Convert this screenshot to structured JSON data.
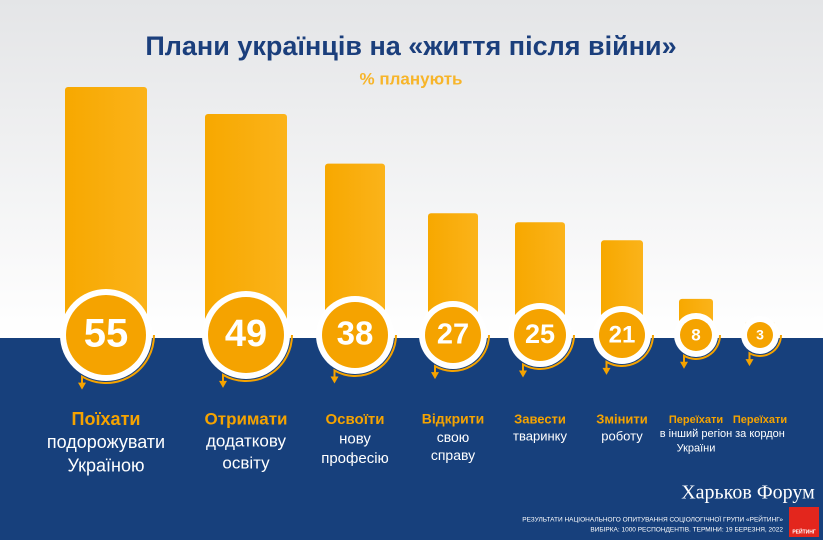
{
  "chart_data": {
    "type": "bar",
    "title": "Плани українців на «життя після війни»",
    "subtitle": "% планують",
    "categories": [
      [
        "Поїхати",
        "подорожувати",
        "Україною"
      ],
      [
        "Отримати",
        "додаткову",
        "освіту"
      ],
      [
        "Освоїти",
        "нову",
        "професію"
      ],
      [
        "Відкрити",
        "свою",
        "справу"
      ],
      [
        "Завести",
        "тваринку"
      ],
      [
        "Змінити",
        "роботу"
      ],
      [
        "Переїхати",
        "в інший регіон",
        "України"
      ],
      [
        "Переїхати",
        "за кордон"
      ]
    ],
    "values": [
      55,
      49,
      38,
      27,
      25,
      21,
      8,
      3
    ],
    "color": "#f5a300",
    "watermark": "Харьков Форум",
    "source": [
      "РЕЗУЛЬТАТИ НАЦІОНАЛЬНОГО ОПИТУВАННЯ СОЦІОЛОГІЧНОЇ ГРУПИ «РЕЙТИНГ»",
      "ВИБІРКА: 1000 РЕСПОНДЕНТІВ. ТЕРМІНИ: 19 БЕРЕЗНЯ, 2022"
    ],
    "logo": "РЕЙТИНГ"
  }
}
